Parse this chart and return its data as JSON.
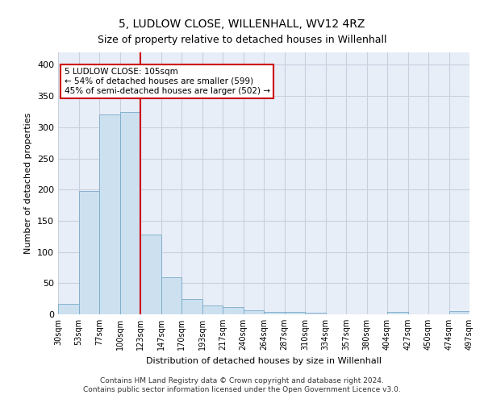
{
  "title": "5, LUDLOW CLOSE, WILLENHALL, WV12 4RZ",
  "subtitle": "Size of property relative to detached houses in Willenhall",
  "xlabel": "Distribution of detached houses by size in Willenhall",
  "ylabel": "Number of detached properties",
  "bin_labels": [
    "30sqm",
    "53sqm",
    "77sqm",
    "100sqm",
    "123sqm",
    "147sqm",
    "170sqm",
    "193sqm",
    "217sqm",
    "240sqm",
    "264sqm",
    "287sqm",
    "310sqm",
    "334sqm",
    "357sqm",
    "380sqm",
    "404sqm",
    "427sqm",
    "450sqm",
    "474sqm",
    "497sqm"
  ],
  "bar_heights": [
    17,
    198,
    321,
    325,
    128,
    60,
    25,
    14,
    12,
    7,
    4,
    4,
    3,
    0,
    0,
    0,
    4,
    0,
    0,
    5
  ],
  "bar_color": "#cce0f0",
  "bar_edge_color": "#7aaac8",
  "vline_color": "#cc0000",
  "vline_x_index": 3,
  "ylim": [
    0,
    420
  ],
  "yticks": [
    0,
    50,
    100,
    150,
    200,
    250,
    300,
    350,
    400
  ],
  "annotation_title": "5 LUDLOW CLOSE: 105sqm",
  "annotation_line1": "← 54% of detached houses are smaller (599)",
  "annotation_line2": "45% of semi-detached houses are larger (502) →",
  "annotation_box_color": "#ffffff",
  "annotation_edge_color": "#cc0000",
  "grid_color": "#c8d0de",
  "background_color": "#e8eef8",
  "title_fontsize": 10,
  "subtitle_fontsize": 9,
  "ylabel_fontsize": 8,
  "xlabel_fontsize": 8,
  "footer1": "Contains HM Land Registry data © Crown copyright and database right 2024.",
  "footer2": "Contains public sector information licensed under the Open Government Licence v3.0."
}
